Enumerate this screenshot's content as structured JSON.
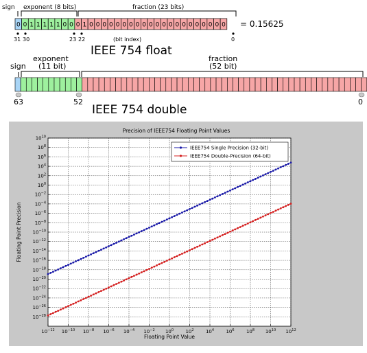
{
  "float": {
    "header_sign": "sign",
    "header_exponent": "exponent (8 bits)",
    "header_fraction": "fraction (23 bits)",
    "bits": [
      "0",
      "0",
      "1",
      "1",
      "1",
      "1",
      "1",
      "0",
      "0",
      "0",
      "1",
      "0",
      "0",
      "0",
      "0",
      "0",
      "0",
      "0",
      "0",
      "0",
      "0",
      "0",
      "0",
      "0",
      "0",
      "0",
      "0",
      "0",
      "0",
      "0",
      "0",
      "0"
    ],
    "equals_value": "= 0.15625",
    "idx_31": "31",
    "idx_30": "30",
    "idx_23": "23",
    "idx_22": "22",
    "idx_0": "0",
    "bit_index_label": "(bit index)",
    "title": "IEEE 754 float",
    "colors": {
      "sign": "#a9d5f6",
      "exponent": "#9ef09e",
      "fraction": "#f6a6a6"
    }
  },
  "double": {
    "header_sign": "sign",
    "header_exponent": "exponent",
    "header_exponent_bits": "(11 bit)",
    "header_fraction": "fraction",
    "header_fraction_bits": "(52 bit)",
    "idx_63": "63",
    "idx_52": "52",
    "idx_0": "0",
    "title": "IEEE 754 double",
    "colors": {
      "sign": "#a9d5f6",
      "exponent": "#9ef09e",
      "fraction": "#f6a6a6"
    }
  },
  "chart_data": {
    "type": "line",
    "title": "Precision of IEEE754 Floating Point Values",
    "xlabel": "Floating Point Value",
    "ylabel": "Floating Point Precision",
    "x_scale": "log",
    "y_scale": "log",
    "xlim": [
      1e-12,
      1000000000000.0
    ],
    "ylim": [
      1e-30,
      10000000000.0
    ],
    "x_ticks": [
      "10^-12",
      "10^-10",
      "10^-8",
      "10^-6",
      "10^-4",
      "10^-2",
      "10^0",
      "10^2",
      "10^4",
      "10^6",
      "10^8",
      "10^10",
      "10^12"
    ],
    "y_ticks": [
      "10^-28",
      "10^-26",
      "10^-24",
      "10^-22",
      "10^-20",
      "10^-18",
      "10^-16",
      "10^-14",
      "10^-12",
      "10^-10",
      "10^-8",
      "10^-6",
      "10^-4",
      "10^-2",
      "10^0",
      "10^2",
      "10^4",
      "10^6",
      "10^8",
      "10^10"
    ],
    "grid": true,
    "legend_position": "top-right",
    "series": [
      {
        "name": "IEEE754 Single Precision (32-bit)",
        "color": "#1a1aa8",
        "x": [
          1e-12,
          1000000000000.0
        ],
        "y": [
          1.2e-19,
          60000.0
        ]
      },
      {
        "name": "IEEE754 Double-Precision (64-bit)",
        "color": "#d42020",
        "x": [
          1e-12,
          1000000000000.0
        ],
        "y": [
          2e-28,
          0.00011
        ]
      }
    ]
  }
}
